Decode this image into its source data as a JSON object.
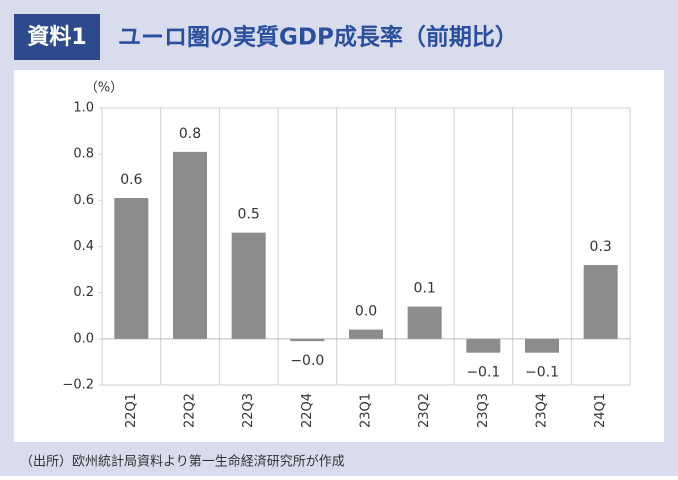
{
  "header": {
    "badge": "資料1",
    "title": "ユーロ圏の実質GDP成長率（前期比）"
  },
  "chart_data": {
    "type": "bar",
    "y_label": "（%）",
    "categories": [
      "22Q1",
      "22Q2",
      "22Q3",
      "22Q4",
      "23Q1",
      "23Q2",
      "23Q3",
      "23Q4",
      "24Q1"
    ],
    "values": [
      0.61,
      0.81,
      0.46,
      -0.01,
      0.04,
      0.14,
      -0.06,
      -0.06,
      0.32
    ],
    "value_labels": [
      "0.6",
      "0.8",
      "0.5",
      "−0.0",
      "0.0",
      "0.1",
      "−0.1",
      "−0.1",
      "0.3"
    ],
    "color": "#8c8c8c",
    "ylim": [
      -0.2,
      1.0
    ],
    "yticks": [
      {
        "value": -0.2,
        "label": "−0.2"
      },
      {
        "value": 0,
        "label": "0.0"
      },
      {
        "value": 0.2,
        "label": "0.2"
      },
      {
        "value": 0.4,
        "label": "0.4"
      },
      {
        "value": 0.6,
        "label": "0.6"
      },
      {
        "value": 0.8,
        "label": "0.8"
      },
      {
        "value": 1.0,
        "label": "1.0"
      }
    ],
    "category_grid": true
  },
  "footer": {
    "source": "（出所）欧州統計局資料より第一生命経済研究所が作成"
  }
}
